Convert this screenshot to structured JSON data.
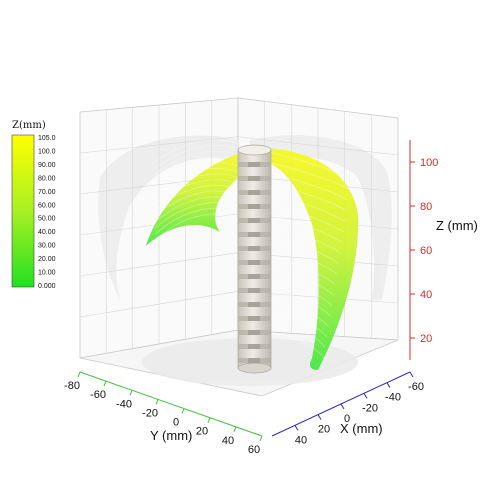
{
  "colors": {
    "x_axis": "#2b2bb8",
    "y_axis": "#3cc23c",
    "z_axis": "#d42c2c",
    "surface_low": "#33e633",
    "surface_high": "#ffff1a",
    "column": "#e2ded4",
    "grid": "#d6d6d6"
  },
  "chart_data": {
    "type": "surface-3d",
    "xlabel": "X (mm)",
    "ylabel": "Y (mm)",
    "zlabel": "Z (mm)",
    "xlim": [
      -60,
      60
    ],
    "ylim": [
      -80,
      60
    ],
    "zlim": [
      10,
      110
    ],
    "x_ticks": [
      "40",
      "20",
      "0",
      "-20",
      "-40",
      "-60"
    ],
    "y_ticks": [
      "-80",
      "-60",
      "-40",
      "-20",
      "0",
      "20",
      "40",
      "60"
    ],
    "z_ticks": [
      "20",
      "40",
      "60",
      "80",
      "100"
    ],
    "grid": true,
    "colorbar": {
      "title": "Z(mm)",
      "position": "left",
      "labels": [
        "105.0",
        "100.0",
        "90.00",
        "80.00",
        "70.00",
        "60.00",
        "50.00",
        "40.00",
        "30.00",
        "20.00",
        "10.00",
        "0.000"
      ]
    }
  }
}
